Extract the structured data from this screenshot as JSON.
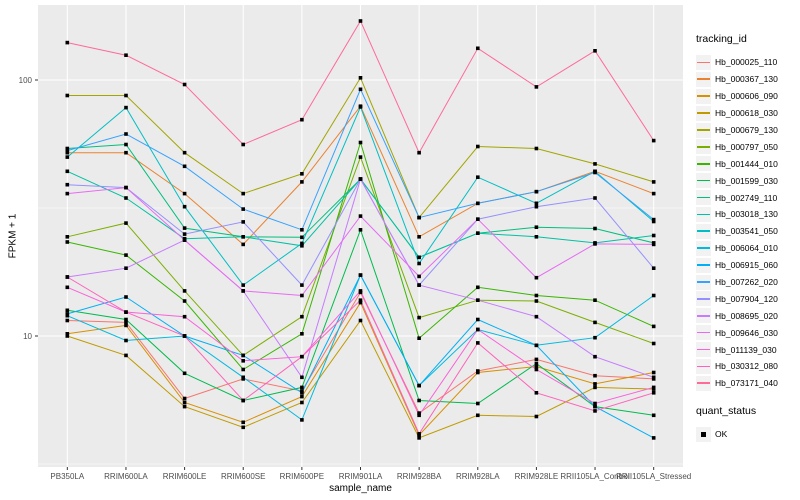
{
  "chart_data": {
    "type": "line",
    "title": "",
    "xlabel": "sample_name",
    "ylabel": "FPKM + 1",
    "y_scale": "log10",
    "ylim": [
      3.0,
      195
    ],
    "y_ticks": [
      10,
      100
    ],
    "y_tick_labels": [
      "10",
      "100"
    ],
    "y_minor_ticks": [
      3.162,
      31.623
    ],
    "grid": true,
    "legend_position": "right",
    "point_shape": "filled-square",
    "point_color": "#000000",
    "categories": [
      "PB350LA",
      "RRIM600LA",
      "RRIM600LE",
      "RRIM600SE",
      "RRIM600PE",
      "RRIM901LA",
      "RRIM928BA",
      "RRIM928LA",
      "RRIM928LE",
      "RRII105LA_Control",
      "RRII105LA_Stressed"
    ],
    "series": [
      {
        "name": "Hb_000025_110",
        "color": "#F8766D",
        "values": [
          11.5,
          11.3,
          5.7,
          6.8,
          6.1,
          14.8,
          5.0,
          7.3,
          8.1,
          7.0,
          6.8
        ]
      },
      {
        "name": "Hb_000367_130",
        "color": "#EA8331",
        "values": [
          52,
          52,
          36,
          22.8,
          40,
          79,
          24.4,
          33,
          36.6,
          44,
          36
        ]
      },
      {
        "name": "Hb_000606_090",
        "color": "#D89000",
        "values": [
          10.2,
          11.0,
          5.5,
          4.6,
          5.8,
          13.5,
          4.1,
          7.2,
          7.6,
          6.5,
          7.2
        ]
      },
      {
        "name": "Hb_000618_030",
        "color": "#C09B00",
        "values": [
          10.0,
          8.4,
          5.3,
          4.4,
          5.5,
          11.5,
          4.0,
          4.9,
          4.85,
          6.3,
          6.2
        ]
      },
      {
        "name": "Hb_000679_130",
        "color": "#A3A500",
        "values": [
          87,
          87,
          52,
          36,
          43,
          102,
          29,
          55,
          54,
          47,
          40
        ]
      },
      {
        "name": "Hb_000797_050",
        "color": "#7CAE00",
        "values": [
          24.4,
          27.6,
          15.0,
          8.4,
          11.9,
          50,
          11.8,
          13.8,
          13.7,
          11.3,
          9.35
        ]
      },
      {
        "name": "Hb_001444_010",
        "color": "#39B600",
        "values": [
          23.3,
          20.7,
          13.7,
          7.4,
          10.2,
          57,
          9.8,
          15.5,
          14.4,
          13.8,
          10.9
        ]
      },
      {
        "name": "Hb_001599_030",
        "color": "#00BB4E",
        "values": [
          12.6,
          11.6,
          7.15,
          5.6,
          6.3,
          26,
          5.6,
          5.45,
          7.8,
          5.3,
          4.9
        ]
      },
      {
        "name": "Hb_002749_110",
        "color": "#00BF7D",
        "values": [
          54,
          56,
          26.4,
          24.4,
          24.3,
          41,
          20.3,
          25.2,
          26.6,
          26.3,
          23.1
        ]
      },
      {
        "name": "Hb_003018_130",
        "color": "#00C1A3",
        "values": [
          44,
          34.6,
          24.0,
          24.4,
          22.5,
          41,
          20.3,
          25.2,
          24.4,
          23.1,
          24.7
        ]
      },
      {
        "name": "Hb_003541_050",
        "color": "#00BFC4",
        "values": [
          50,
          78,
          32,
          15.8,
          23,
          78.5,
          19.2,
          41.7,
          33,
          44,
          28
        ]
      },
      {
        "name": "Hb_006064_010",
        "color": "#00BAE0",
        "values": [
          12.0,
          9.6,
          10.0,
          6.9,
          4.7,
          17.3,
          6.4,
          10.6,
          9.2,
          9.85,
          14.4
        ]
      },
      {
        "name": "Hb_006915_060",
        "color": "#00B0F6",
        "values": [
          12.2,
          14.2,
          10.0,
          8.4,
          6.0,
          17.3,
          6.4,
          11.6,
          9.2,
          5.3,
          4.0
        ]
      },
      {
        "name": "Hb_007262_020",
        "color": "#35A2FF",
        "values": [
          53,
          61.5,
          46,
          31.3,
          26,
          92,
          29,
          33,
          36.6,
          43.5,
          28.5
        ]
      },
      {
        "name": "Hb_007904_120",
        "color": "#9590FF",
        "values": [
          39,
          38,
          25,
          27.9,
          15.8,
          41,
          15.8,
          28.6,
          32,
          34.6,
          18.4
        ]
      },
      {
        "name": "Hb_008695_020",
        "color": "#C77CFF",
        "values": [
          17,
          18.4,
          23.7,
          15.0,
          6.9,
          41,
          15.8,
          13.8,
          11.9,
          8.3,
          6.9
        ]
      },
      {
        "name": "Hb_009646_030",
        "color": "#E76BF3",
        "values": [
          36,
          38,
          23.7,
          15.0,
          14.4,
          29.4,
          17.1,
          28.6,
          16.9,
          22.9,
          22.8
        ]
      },
      {
        "name": "Hb_011139_030",
        "color": "#FA62DB",
        "values": [
          15.5,
          12.4,
          11.9,
          8.0,
          8.3,
          15,
          4.9,
          10.6,
          7.4,
          5.45,
          6.3
        ]
      },
      {
        "name": "Hb_030312_080",
        "color": "#FF62BC",
        "values": [
          17,
          12.4,
          10.0,
          5.6,
          8.3,
          13.8,
          4.15,
          9.4,
          6.0,
          5.1,
          6.0
        ]
      },
      {
        "name": "Hb_073171_040",
        "color": "#FF6A98",
        "values": [
          140,
          125,
          96,
          56,
          70,
          170,
          52,
          133,
          94,
          130,
          58
        ]
      }
    ]
  },
  "legend": {
    "tracking_title": "tracking_id",
    "quant_title": "quant_status",
    "quant_items": [
      {
        "label": "OK",
        "symbol": "black-square"
      }
    ]
  },
  "colors": {
    "panel_bg": "#EBEBEB",
    "grid": "#FFFFFF",
    "legend_key_bg": "#F2F2F2",
    "axis_text": "#4D4D4D",
    "tick_mark": "#333333",
    "text": "#000000",
    "background": "#FFFFFF"
  }
}
